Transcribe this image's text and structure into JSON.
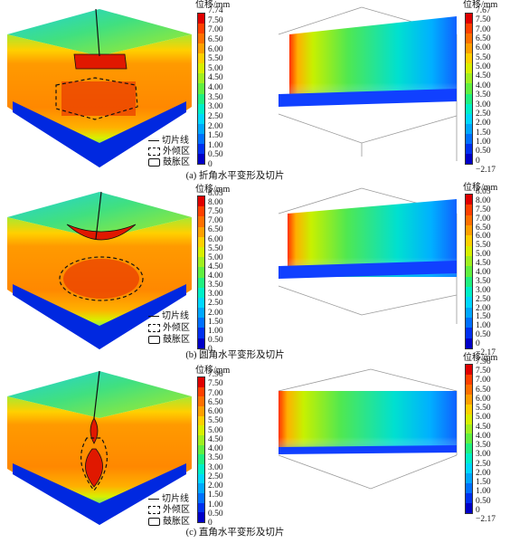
{
  "unit_label": "位移/mm",
  "legend": {
    "cut_line": "切片线",
    "outer_restraint": "外倾区",
    "bulge": "鼓胀区"
  },
  "scale_colors": [
    "#0000c8",
    "#0030f0",
    "#0070ff",
    "#00a8ff",
    "#00d8ff",
    "#00f0c8",
    "#20f080",
    "#60f040",
    "#a0f020",
    "#d8f000",
    "#ffd000",
    "#ffa000",
    "#ff7000",
    "#ff4000",
    "#e00000"
  ],
  "panels": [
    {
      "caption": "(a) 折角水平变形及切片",
      "left_scale": [
        "7.74",
        "7.50",
        "7.00",
        "6.50",
        "6.00",
        "5.50",
        "5.00",
        "4.50",
        "4.00",
        "3.50",
        "3.00",
        "2.50",
        "2.00",
        "1.50",
        "1.00",
        "0.50",
        "0"
      ],
      "right_scale": [
        "7.67",
        "7.50",
        "7.00",
        "6.50",
        "6.00",
        "5.50",
        "5.00",
        "4.50",
        "4.00",
        "3.50",
        "3.00",
        "2.50",
        "2.00",
        "1.50",
        "1.00",
        "0.50",
        "0",
        "−2.17"
      ]
    },
    {
      "caption": "(b) 圆角水平变形及切片",
      "left_scale": [
        "8.05",
        "8.00",
        "7.50",
        "7.00",
        "6.50",
        "6.00",
        "5.50",
        "5.00",
        "4.50",
        "4.00",
        "3.50",
        "3.00",
        "2.50",
        "2.00",
        "1.50",
        "1.00",
        "0.50",
        "0"
      ],
      "right_scale": [
        "8.05",
        "8.00",
        "7.50",
        "7.00",
        "6.50",
        "6.00",
        "5.50",
        "5.00",
        "4.50",
        "4.00",
        "3.50",
        "3.00",
        "2.50",
        "2.00",
        "1.50",
        "1.00",
        "0.50",
        "0",
        "−2.17"
      ]
    },
    {
      "caption": "(c) 直角水平变形及切片",
      "left_scale": [
        "7.96",
        "7.50",
        "7.00",
        "6.50",
        "6.00",
        "5.50",
        "5.00",
        "4.50",
        "4.00",
        "3.50",
        "3.00",
        "2.50",
        "2.00",
        "1.50",
        "1.00",
        "0.50",
        "0"
      ],
      "right_scale": [
        "7.96",
        "7.50",
        "7.00",
        "6.50",
        "6.00",
        "5.50",
        "5.00",
        "4.50",
        "4.00",
        "3.50",
        "3.00",
        "2.50",
        "2.00",
        "1.50",
        "1.00",
        "0.50",
        "0",
        "−2.17"
      ]
    }
  ]
}
